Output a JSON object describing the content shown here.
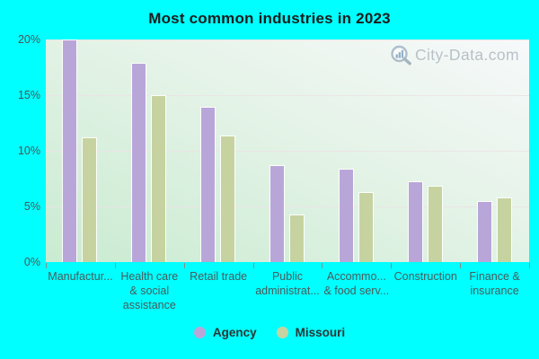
{
  "title": "Most common industries in 2023",
  "watermark": "City-Data.com",
  "colors": {
    "background": "#00ffff",
    "agency": "#b9a6d9",
    "missouri": "#c6d3a0",
    "bar_border": "#fcfefc",
    "gridline": "#ece2e6",
    "axis_text": "#4a5a5a",
    "title_text": "#1c1c1c",
    "tick_mark": "#7e9191",
    "watermark_text": "#b4bdc4",
    "plot_bg_light": "#f7f9fa",
    "plot_bg_green": "#c9ebd1"
  },
  "chart_data": {
    "type": "bar",
    "title": "Most common industries in 2023",
    "categories": [
      "Manufactur...",
      "Health care & social assistance",
      "Retail trade",
      "Public administrat...",
      "Accommo... & food serv...",
      "Construction",
      "Finance & insurance"
    ],
    "category_label_lines": [
      [
        "Manufactur..."
      ],
      [
        "Health care",
        "& social",
        "assistance"
      ],
      [
        "Retail trade"
      ],
      [
        "Public",
        "administrat..."
      ],
      [
        "Accommo...",
        "& food serv..."
      ],
      [
        "Construction"
      ],
      [
        "Finance &",
        "insurance"
      ]
    ],
    "series": [
      {
        "name": "Agency",
        "color": "#b9a6d9",
        "values": [
          19.9,
          17.8,
          13.9,
          8.6,
          8.3,
          7.2,
          5.4
        ]
      },
      {
        "name": "Missouri",
        "color": "#c6d3a0",
        "values": [
          11.1,
          14.9,
          11.3,
          4.2,
          6.2,
          6.8,
          5.7
        ]
      }
    ],
    "xlabel": "",
    "ylabel": "",
    "ylim": [
      0,
      20
    ],
    "yticks": [
      0,
      5,
      10,
      15,
      20
    ],
    "ytick_suffix": "%",
    "grid": "horizontal",
    "legend_position": "bottom-center"
  },
  "legend": {
    "items": [
      {
        "label": "Agency",
        "color": "#b9a6d9"
      },
      {
        "label": "Missouri",
        "color": "#c6d3a0"
      }
    ]
  }
}
